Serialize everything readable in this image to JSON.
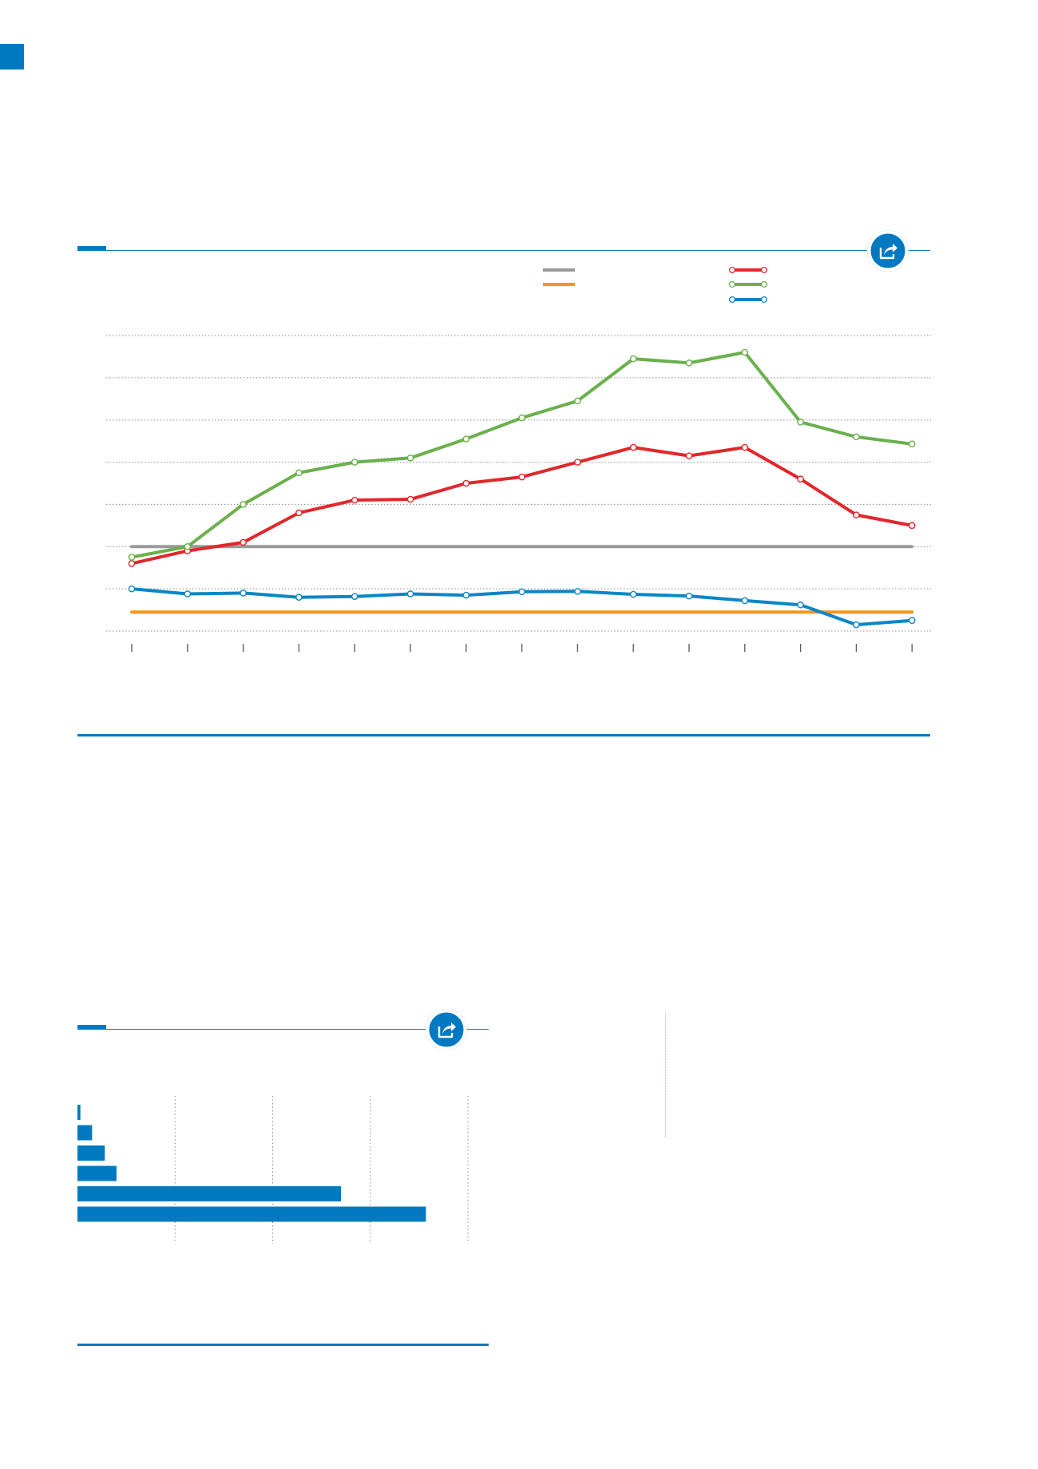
{
  "colors": {
    "brand": "#0079c1",
    "gray_series": "#9a9a9a",
    "orange_series": "#f7941d",
    "red_series": "#e3262a",
    "green_series": "#6ab04c",
    "blue_series": "#0a86c6"
  },
  "icons": {
    "share": "share-icon"
  },
  "chart_data": [
    {
      "type": "line",
      "title": "",
      "xlabel": "",
      "ylabel": "",
      "x": [
        1,
        2,
        3,
        4,
        5,
        6,
        7,
        8,
        9,
        10,
        11,
        12,
        13,
        14,
        15
      ],
      "ylim": [
        0,
        7
      ],
      "grid": true,
      "legend_position": "top-right",
      "series": [
        {
          "key": "gray",
          "style": "flat",
          "marker": false,
          "values": [
            2.0,
            2.0,
            2.0,
            2.0,
            2.0,
            2.0,
            2.0,
            2.0,
            2.0,
            2.0,
            2.0,
            2.0,
            2.0,
            2.0,
            2.0
          ]
        },
        {
          "key": "orange",
          "style": "flat",
          "marker": false,
          "values": [
            0.45,
            0.45,
            0.45,
            0.45,
            0.45,
            0.45,
            0.45,
            0.45,
            0.45,
            0.45,
            0.45,
            0.45,
            0.45,
            0.45,
            0.45
          ]
        },
        {
          "key": "red",
          "marker": true,
          "values": [
            1.6,
            1.9,
            2.1,
            2.8,
            3.1,
            3.12,
            3.5,
            3.65,
            4.0,
            4.35,
            4.15,
            4.35,
            3.6,
            2.75,
            2.5
          ]
        },
        {
          "key": "green",
          "marker": true,
          "values": [
            1.75,
            2.0,
            3.0,
            3.75,
            4.0,
            4.1,
            4.55,
            5.05,
            5.45,
            6.45,
            6.35,
            6.6,
            4.95,
            4.6,
            4.43
          ]
        },
        {
          "key": "blue",
          "marker": true,
          "values": [
            1.0,
            0.88,
            0.9,
            0.8,
            0.82,
            0.88,
            0.85,
            0.93,
            0.94,
            0.87,
            0.83,
            0.72,
            0.62,
            0.15,
            0.25
          ]
        }
      ],
      "legend_entries": [
        {
          "key": "gray",
          "col": 0,
          "row": 0,
          "marker": false
        },
        {
          "key": "orange",
          "col": 0,
          "row": 1,
          "marker": false
        },
        {
          "key": "red",
          "col": 1,
          "row": 0,
          "marker": true
        },
        {
          "key": "green",
          "col": 1,
          "row": 1,
          "marker": true
        },
        {
          "key": "blue",
          "col": 1,
          "row": 2,
          "marker": true
        }
      ]
    },
    {
      "type": "bar",
      "orientation": "horizontal",
      "title": "",
      "xlabel": "",
      "ylabel": "",
      "xlim": [
        0,
        400
      ],
      "grid": true,
      "categories": [
        "",
        "",
        "",
        "",
        "",
        ""
      ],
      "values": [
        3,
        15,
        28,
        40,
        270,
        357
      ]
    }
  ]
}
